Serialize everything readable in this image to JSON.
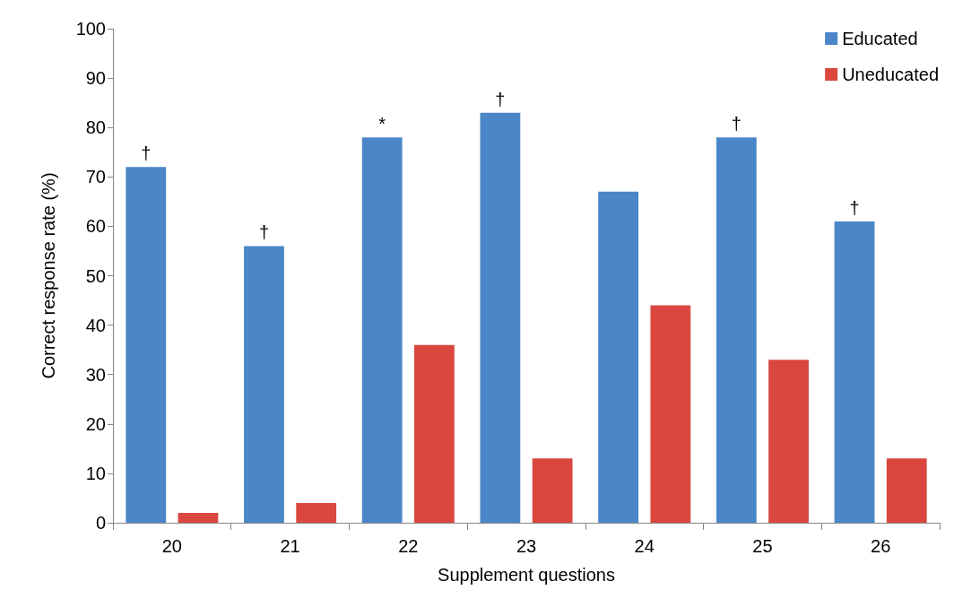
{
  "chart_data": {
    "type": "bar",
    "xlabel": "Supplement questions",
    "ylabel": "Correct response rate (%)",
    "categories": [
      "20",
      "21",
      "22",
      "23",
      "24",
      "25",
      "26"
    ],
    "series": [
      {
        "name": "Educated",
        "color": "#4a86c8",
        "values": [
          72,
          56,
          78,
          83,
          67,
          78,
          61
        ],
        "value_labels": [
          "†",
          "†",
          "*",
          "†",
          null,
          "†",
          "†"
        ]
      },
      {
        "name": "Uneducated",
        "color": "#d9473f",
        "values": [
          2,
          4,
          36,
          13,
          44,
          33,
          13
        ]
      }
    ],
    "ylim": [
      0,
      100
    ],
    "yticks": [
      0,
      10,
      20,
      30,
      40,
      50,
      60,
      70,
      80,
      90,
      100
    ],
    "grid": false,
    "legend": "top right"
  }
}
